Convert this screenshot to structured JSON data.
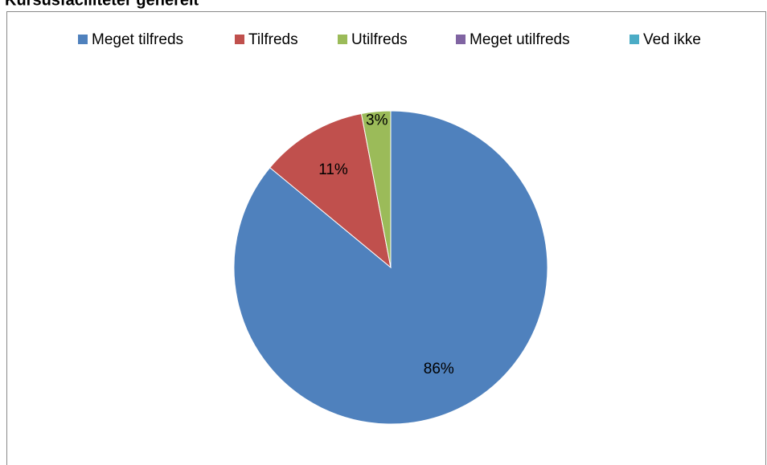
{
  "chart_data": {
    "type": "pie",
    "title": "Kursusfaciliteter generelt",
    "categories": [
      "Meget tilfreds",
      "Tilfreds",
      "Utilfreds",
      "Meget utilfreds",
      "Ved ikke"
    ],
    "values": [
      86,
      11,
      3,
      0,
      0
    ],
    "value_labels": [
      "86%",
      "11%",
      "3%",
      null,
      null
    ],
    "colors": [
      "#4f81bd",
      "#c0504d",
      "#9bbb59",
      "#8064a2",
      "#4bacc6"
    ],
    "legend": "top"
  }
}
